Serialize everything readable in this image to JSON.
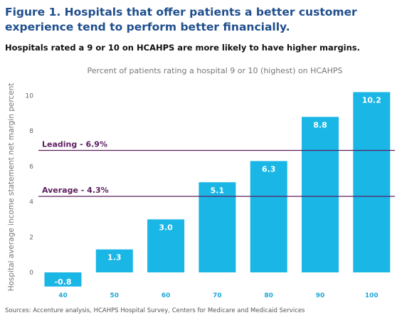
{
  "figure": {
    "title": "Figure 1. Hospitals that offer patients a better customer experience tend to perform better financially.",
    "subtitle": "Hospitals rated a 9 or 10 on HCAHPS are more likely to have higher margins.",
    "source": "Sources: Accenture analysis, HCAHPS Hospital Survey, Centers for Medicare and Medicaid Services"
  },
  "colors": {
    "bar": "#19b6e6",
    "reference_line": "#5a1e5e",
    "title": "#1f4e8c"
  },
  "chart_data": {
    "type": "bar",
    "title": "Percent of patients rating a hospital 9 or 10 (highest) on HCAHPS",
    "xlabel": "Percent of patients rating a hospital 9 or 10 (highest) on HCAHPS",
    "ylabel": "Hospital average income statement net margin percent",
    "categories": [
      "40",
      "50",
      "60",
      "70",
      "80",
      "90",
      "100"
    ],
    "values": [
      -0.8,
      1.3,
      3.0,
      5.1,
      6.3,
      8.8,
      10.2
    ],
    "value_labels": [
      "-0.8",
      "1.3",
      "3.0",
      "5.1",
      "6.3",
      "8.8",
      "10.2"
    ],
    "ylim": [
      -0.8,
      10.4
    ],
    "yticks": [
      0,
      2,
      4,
      6,
      8,
      10
    ],
    "grid": false,
    "reference_lines": [
      {
        "label": "Leading - 6.9%",
        "value": 6.9
      },
      {
        "label": "Average - 4.3%",
        "value": 4.3
      }
    ]
  }
}
